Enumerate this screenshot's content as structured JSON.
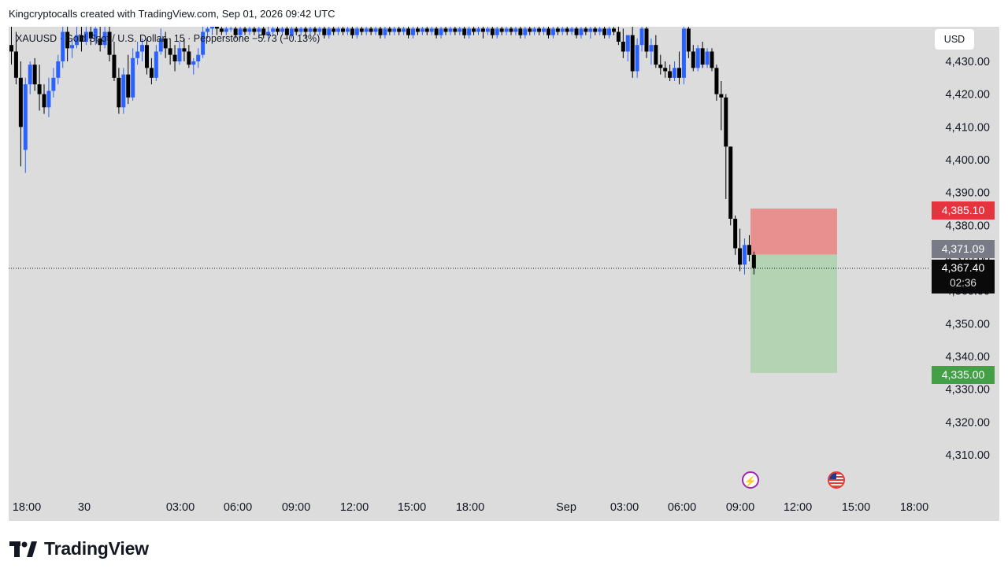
{
  "header": {
    "credit": "Kingcryptocalls created with TradingView.com, Sep 01, 2026 09:42 UTC"
  },
  "symbol": {
    "line": "XAUUSD · Gold Spot / U.S. Dollar · 15 · Pepperstone  −5.73 (−0.13%)"
  },
  "price_axis": {
    "currency": "USD",
    "labels": [
      "4,430.00",
      "4,420.00",
      "4,410.00",
      "4,400.00",
      "4,390.00",
      "4,380.00",
      "4,370.00",
      "4,360.00",
      "4,350.00",
      "4,340.00",
      "4,330.00",
      "4,320.00",
      "4,310.00"
    ]
  },
  "time_axis": {
    "labels": [
      "18:00",
      "30",
      "03:00",
      "06:00",
      "09:00",
      "12:00",
      "15:00",
      "18:00",
      "Sep",
      "03:00",
      "06:00",
      "09:00",
      "12:00",
      "15:00",
      "18:00"
    ]
  },
  "trade": {
    "stop_loss": "4,385.10",
    "entry": "4,371.09",
    "take_profit": "4,335.00",
    "last_price": "4,367.40",
    "countdown": "02:36"
  },
  "events": {
    "flash_icon": "lightning-icon",
    "flag_icon": "us-flag-icon"
  },
  "colors": {
    "up": "#2962ff",
    "down": "#000000",
    "stop_zone": "#e89090",
    "target_zone": "#b3d3b3",
    "stop_label": "#e6343f",
    "target_label": "#43a047",
    "entry_label": "#787b86"
  },
  "footer": {
    "brand": "TradingView"
  },
  "chart_data": {
    "type": "candlestick",
    "title": "XAUUSD · Gold Spot / U.S. Dollar · 15 · Pepperstone",
    "ylim": [
      4305,
      4440
    ],
    "grid": false,
    "last_price": 4367.4,
    "position": {
      "direction": "short",
      "entry": 4371.09,
      "stop_loss": 4385.1,
      "take_profit": 4335.0
    },
    "x_ticks": [
      "18:00",
      "30",
      "03:00",
      "06:00",
      "09:00",
      "12:00",
      "15:00",
      "18:00",
      "Sep",
      "03:00",
      "06:00",
      "09:00",
      "12:00",
      "15:00",
      "18:00"
    ],
    "candles": [
      {
        "o": 4435,
        "h": 4441,
        "c": 4433,
        "l": 4429
      },
      {
        "o": 4433,
        "h": 4439,
        "c": 4425,
        "l": 4423
      },
      {
        "o": 4425,
        "h": 4430,
        "c": 4410,
        "l": 4398
      },
      {
        "o": 4403,
        "h": 4425,
        "c": 4423,
        "l": 4396
      },
      {
        "o": 4423,
        "h": 4430,
        "c": 4429,
        "l": 4420
      },
      {
        "o": 4429,
        "h": 4431,
        "c": 4423,
        "l": 4421
      },
      {
        "o": 4423,
        "h": 4429,
        "c": 4420,
        "l": 4415
      },
      {
        "o": 4420,
        "h": 4423,
        "c": 4416,
        "l": 4414
      },
      {
        "o": 4416,
        "h": 4425,
        "c": 4421,
        "l": 4413
      },
      {
        "o": 4421,
        "h": 4428,
        "c": 4425,
        "l": 4419
      },
      {
        "o": 4425,
        "h": 4432,
        "c": 4430,
        "l": 4423
      },
      {
        "o": 4430,
        "h": 4441,
        "c": 4439,
        "l": 4428
      },
      {
        "o": 4439,
        "h": 4441,
        "c": 4434,
        "l": 4430
      },
      {
        "o": 4434,
        "h": 4437,
        "c": 4435,
        "l": 4431
      },
      {
        "o": 4435,
        "h": 4441,
        "c": 4438,
        "l": 4434
      },
      {
        "o": 4438,
        "h": 4441,
        "c": 4436,
        "l": 4433
      },
      {
        "o": 4436,
        "h": 4441,
        "c": 4439,
        "l": 4435
      },
      {
        "o": 4439,
        "h": 4441,
        "c": 4437,
        "l": 4435
      },
      {
        "o": 4437,
        "h": 4441,
        "c": 4440,
        "l": 4435
      },
      {
        "o": 4437,
        "h": 4441,
        "c": 4435,
        "l": 4433
      },
      {
        "o": 4435,
        "h": 4441,
        "c": 4439,
        "l": 4434
      },
      {
        "o": 4439,
        "h": 4441,
        "c": 4432,
        "l": 4430
      },
      {
        "o": 4432,
        "h": 4436,
        "c": 4425,
        "l": 4424
      },
      {
        "o": 4425,
        "h": 4428,
        "c": 4416,
        "l": 4414
      },
      {
        "o": 4416,
        "h": 4428,
        "c": 4426,
        "l": 4414
      },
      {
        "o": 4426,
        "h": 4432,
        "c": 4419,
        "l": 4417
      },
      {
        "o": 4419,
        "h": 4434,
        "c": 4431,
        "l": 4418
      },
      {
        "o": 4431,
        "h": 4436,
        "c": 4433,
        "l": 4429
      },
      {
        "o": 4433,
        "h": 4437,
        "c": 4435,
        "l": 4430
      },
      {
        "o": 4435,
        "h": 4437,
        "c": 4428,
        "l": 4426
      },
      {
        "o": 4428,
        "h": 4431,
        "c": 4425,
        "l": 4423
      },
      {
        "o": 4425,
        "h": 4435,
        "c": 4433,
        "l": 4424
      },
      {
        "o": 4433,
        "h": 4440,
        "c": 4437,
        "l": 4432
      },
      {
        "o": 4437,
        "h": 4439,
        "c": 4434,
        "l": 4431
      },
      {
        "o": 4434,
        "h": 4437,
        "c": 4432,
        "l": 4429
      },
      {
        "o": 4432,
        "h": 4435,
        "c": 4430,
        "l": 4427
      },
      {
        "o": 4430,
        "h": 4436,
        "c": 4434,
        "l": 4429
      },
      {
        "o": 4434,
        "h": 4437,
        "c": 4433,
        "l": 4430
      },
      {
        "o": 4433,
        "h": 4435,
        "c": 4429,
        "l": 4428
      },
      {
        "o": 4429,
        "h": 4431,
        "c": 4430,
        "l": 4426
      },
      {
        "o": 4430,
        "h": 4434,
        "c": 4432,
        "l": 4428
      },
      {
        "o": 4432,
        "h": 4441,
        "c": 4439,
        "l": 4431
      },
      {
        "o": 4439,
        "h": 4441,
        "c": 4440,
        "l": 4437
      },
      {
        "o": 4440,
        "h": 4441,
        "c": 4441,
        "l": 4438
      },
      {
        "o": 4441,
        "h": 4441,
        "c": 4440,
        "l": 4438
      },
      {
        "o": 4440,
        "h": 4441,
        "c": 4439,
        "l": 4438
      },
      {
        "o": 4439,
        "h": 4441,
        "c": 4440,
        "l": 4438
      },
      {
        "o": 4440,
        "h": 4441,
        "c": 4440,
        "l": 4439
      },
      {
        "o": 4440,
        "h": 4441,
        "c": 4438,
        "l": 4437
      },
      {
        "o": 4438,
        "h": 4441,
        "c": 4440,
        "l": 4437
      },
      {
        "o": 4440,
        "h": 4441,
        "c": 4439,
        "l": 4438
      },
      {
        "o": 4439,
        "h": 4441,
        "c": 4440,
        "l": 4438
      },
      {
        "o": 4440,
        "h": 4441,
        "c": 4439,
        "l": 4438
      },
      {
        "o": 4439,
        "h": 4441,
        "c": 4440,
        "l": 4437
      },
      {
        "o": 4440,
        "h": 4441,
        "c": 4438,
        "l": 4437
      },
      {
        "o": 4438,
        "h": 4441,
        "c": 4439,
        "l": 4437
      },
      {
        "o": 4439,
        "h": 4441,
        "c": 4440,
        "l": 4438
      },
      {
        "o": 4440,
        "h": 4441,
        "c": 4439,
        "l": 4438
      },
      {
        "o": 4439,
        "h": 4441,
        "c": 4440,
        "l": 4438
      },
      {
        "o": 4440,
        "h": 4441,
        "c": 4438,
        "l": 4437
      },
      {
        "o": 4438,
        "h": 4441,
        "c": 4440,
        "l": 4437
      },
      {
        "o": 4440,
        "h": 4441,
        "c": 4439,
        "l": 4438
      },
      {
        "o": 4439,
        "h": 4441,
        "c": 4440,
        "l": 4438
      },
      {
        "o": 4440,
        "h": 4441,
        "c": 4439,
        "l": 4437
      },
      {
        "o": 4439,
        "h": 4441,
        "c": 4440,
        "l": 4438
      },
      {
        "o": 4440,
        "h": 4441,
        "c": 4439,
        "l": 4438
      },
      {
        "o": 4439,
        "h": 4441,
        "c": 4440,
        "l": 4438
      },
      {
        "o": 4440,
        "h": 4441,
        "c": 4438,
        "l": 4437
      },
      {
        "o": 4438,
        "h": 4441,
        "c": 4440,
        "l": 4437
      },
      {
        "o": 4440,
        "h": 4441,
        "c": 4439,
        "l": 4438
      },
      {
        "o": 4439,
        "h": 4441,
        "c": 4440,
        "l": 4438
      },
      {
        "o": 4440,
        "h": 4441,
        "c": 4439,
        "l": 4438
      },
      {
        "o": 4439,
        "h": 4441,
        "c": 4440,
        "l": 4438
      },
      {
        "o": 4440,
        "h": 4441,
        "c": 4438,
        "l": 4437
      },
      {
        "o": 4438,
        "h": 4441,
        "c": 4440,
        "l": 4437
      },
      {
        "o": 4440,
        "h": 4441,
        "c": 4439,
        "l": 4438
      },
      {
        "o": 4439,
        "h": 4441,
        "c": 4440,
        "l": 4438
      },
      {
        "o": 4440,
        "h": 4441,
        "c": 4439,
        "l": 4438
      },
      {
        "o": 4439,
        "h": 4441,
        "c": 4440,
        "l": 4438
      },
      {
        "o": 4440,
        "h": 4441,
        "c": 4438,
        "l": 4437
      },
      {
        "o": 4438,
        "h": 4441,
        "c": 4440,
        "l": 4437
      },
      {
        "o": 4440,
        "h": 4441,
        "c": 4439,
        "l": 4438
      },
      {
        "o": 4439,
        "h": 4441,
        "c": 4440,
        "l": 4438
      },
      {
        "o": 4440,
        "h": 4441,
        "c": 4439,
        "l": 4438
      },
      {
        "o": 4439,
        "h": 4441,
        "c": 4440,
        "l": 4438
      },
      {
        "o": 4440,
        "h": 4441,
        "c": 4438,
        "l": 4437
      },
      {
        "o": 4438,
        "h": 4441,
        "c": 4440,
        "l": 4437
      },
      {
        "o": 4440,
        "h": 4441,
        "c": 4439,
        "l": 4438
      },
      {
        "o": 4439,
        "h": 4441,
        "c": 4440,
        "l": 4438
      },
      {
        "o": 4440,
        "h": 4441,
        "c": 4439,
        "l": 4438
      },
      {
        "o": 4439,
        "h": 4441,
        "c": 4440,
        "l": 4438
      },
      {
        "o": 4440,
        "h": 4441,
        "c": 4438,
        "l": 4437
      },
      {
        "o": 4438,
        "h": 4441,
        "c": 4440,
        "l": 4437
      },
      {
        "o": 4440,
        "h": 4441,
        "c": 4439,
        "l": 4438
      },
      {
        "o": 4439,
        "h": 4441,
        "c": 4440,
        "l": 4438
      },
      {
        "o": 4440,
        "h": 4441,
        "c": 4439,
        "l": 4438
      },
      {
        "o": 4439,
        "h": 4441,
        "c": 4440,
        "l": 4438
      },
      {
        "o": 4440,
        "h": 4441,
        "c": 4438,
        "l": 4437
      },
      {
        "o": 4438,
        "h": 4441,
        "c": 4440,
        "l": 4437
      },
      {
        "o": 4440,
        "h": 4441,
        "c": 4439,
        "l": 4438
      },
      {
        "o": 4439,
        "h": 4441,
        "c": 4440,
        "l": 4438
      },
      {
        "o": 4440,
        "h": 4441,
        "c": 4439,
        "l": 4437
      },
      {
        "o": 4439,
        "h": 4441,
        "c": 4440,
        "l": 4438
      },
      {
        "o": 4440,
        "h": 4441,
        "c": 4438,
        "l": 4437
      },
      {
        "o": 4438,
        "h": 4441,
        "c": 4440,
        "l": 4437
      },
      {
        "o": 4440,
        "h": 4441,
        "c": 4439,
        "l": 4438
      },
      {
        "o": 4439,
        "h": 4441,
        "c": 4440,
        "l": 4438
      },
      {
        "o": 4440,
        "h": 4441,
        "c": 4439,
        "l": 4438
      },
      {
        "o": 4439,
        "h": 4441,
        "c": 4440,
        "l": 4438
      },
      {
        "o": 4440,
        "h": 4441,
        "c": 4438,
        "l": 4437
      },
      {
        "o": 4438,
        "h": 4441,
        "c": 4440,
        "l": 4437
      },
      {
        "o": 4440,
        "h": 4441,
        "c": 4439,
        "l": 4438
      },
      {
        "o": 4439,
        "h": 4441,
        "c": 4440,
        "l": 4438
      },
      {
        "o": 4440,
        "h": 4441,
        "c": 4439,
        "l": 4438
      },
      {
        "o": 4439,
        "h": 4441,
        "c": 4440,
        "l": 4438
      },
      {
        "o": 4440,
        "h": 4441,
        "c": 4438,
        "l": 4437
      },
      {
        "o": 4438,
        "h": 4441,
        "c": 4440,
        "l": 4437
      },
      {
        "o": 4440,
        "h": 4441,
        "c": 4439,
        "l": 4438
      },
      {
        "o": 4439,
        "h": 4441,
        "c": 4440,
        "l": 4438
      },
      {
        "o": 4440,
        "h": 4441,
        "c": 4439,
        "l": 4438
      },
      {
        "o": 4439,
        "h": 4441,
        "c": 4440,
        "l": 4438
      },
      {
        "o": 4440,
        "h": 4441,
        "c": 4438,
        "l": 4437
      },
      {
        "o": 4438,
        "h": 4441,
        "c": 4440,
        "l": 4437
      },
      {
        "o": 4440,
        "h": 4441,
        "c": 4439,
        "l": 4438
      },
      {
        "o": 4439,
        "h": 4441,
        "c": 4440,
        "l": 4437
      },
      {
        "o": 4440,
        "h": 4441,
        "c": 4439,
        "l": 4438
      },
      {
        "o": 4439,
        "h": 4441,
        "c": 4440,
        "l": 4438
      },
      {
        "o": 4440,
        "h": 4441,
        "c": 4438,
        "l": 4437
      },
      {
        "o": 4438,
        "h": 4441,
        "c": 4440,
        "l": 4437
      },
      {
        "o": 4440,
        "h": 4441,
        "c": 4439,
        "l": 4438
      },
      {
        "o": 4439,
        "h": 4441,
        "c": 4436,
        "l": 4435
      },
      {
        "o": 4436,
        "h": 4440,
        "c": 4433,
        "l": 4431
      },
      {
        "o": 4433,
        "h": 4438,
        "c": 4438,
        "l": 4430
      },
      {
        "o": 4438,
        "h": 4441,
        "c": 4427,
        "l": 4425
      },
      {
        "o": 4427,
        "h": 4437,
        "c": 4435,
        "l": 4425
      },
      {
        "o": 4435,
        "h": 4441,
        "c": 4440,
        "l": 4433
      },
      {
        "o": 4440,
        "h": 4441,
        "c": 4433,
        "l": 4431
      },
      {
        "o": 4433,
        "h": 4437,
        "c": 4435,
        "l": 4429
      },
      {
        "o": 4435,
        "h": 4438,
        "c": 4429,
        "l": 4428
      },
      {
        "o": 4429,
        "h": 4432,
        "c": 4428,
        "l": 4426
      },
      {
        "o": 4428,
        "h": 4430,
        "c": 4427,
        "l": 4425
      },
      {
        "o": 4427,
        "h": 4429,
        "c": 4425,
        "l": 4424
      },
      {
        "o": 4425,
        "h": 4430,
        "c": 4428,
        "l": 4424
      },
      {
        "o": 4428,
        "h": 4433,
        "c": 4425,
        "l": 4423
      },
      {
        "o": 4425,
        "h": 4441,
        "c": 4440,
        "l": 4423
      },
      {
        "o": 4440,
        "h": 4441,
        "c": 4433,
        "l": 4431
      },
      {
        "o": 4433,
        "h": 4435,
        "c": 4428,
        "l": 4427
      },
      {
        "o": 4428,
        "h": 4435,
        "c": 4434,
        "l": 4427
      },
      {
        "o": 4434,
        "h": 4436,
        "c": 4429,
        "l": 4428
      },
      {
        "o": 4429,
        "h": 4434,
        "c": 4433,
        "l": 4428
      },
      {
        "o": 4433,
        "h": 4434,
        "c": 4428,
        "l": 4427
      },
      {
        "o": 4428,
        "h": 4429,
        "c": 4420,
        "l": 4418
      },
      {
        "o": 4420,
        "h": 4424,
        "c": 4419,
        "l": 4409
      },
      {
        "o": 4419,
        "h": 4420,
        "c": 4404,
        "l": 4388
      },
      {
        "o": 4404,
        "h": 4404,
        "c": 4382,
        "l": 4380
      },
      {
        "o": 4382,
        "h": 4383,
        "c": 4373,
        "l": 4371
      },
      {
        "o": 4373,
        "h": 4379,
        "c": 4368,
        "l": 4366
      },
      {
        "o": 4368,
        "h": 4376,
        "c": 4374,
        "l": 4365
      },
      {
        "o": 4374,
        "h": 4377,
        "c": 4371,
        "l": 4369
      },
      {
        "o": 4371,
        "h": 4372,
        "c": 4367,
        "l": 4365
      }
    ]
  }
}
